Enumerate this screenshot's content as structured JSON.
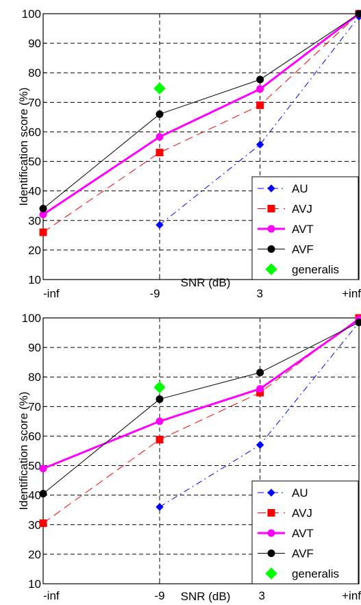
{
  "chart_data": [
    {
      "type": "line",
      "x_categories": [
        "-inf",
        "-9",
        "3",
        "+inf"
      ],
      "xlabel": "SNR (dB)",
      "ylabel": "Identification score (%)",
      "ylim": [
        10,
        100
      ],
      "yticks": [
        10,
        20,
        30,
        40,
        50,
        60,
        70,
        80,
        90,
        100
      ],
      "grid": true,
      "legend_position": "bottom-right",
      "series": [
        {
          "name": "AU",
          "color": "#0000ff",
          "marker": "diamond",
          "line": "dashdot",
          "values": [
            null,
            28.5,
            55.7,
            99
          ]
        },
        {
          "name": "AVJ",
          "color": "#ff0000",
          "marker": "square",
          "line": "dashed",
          "values": [
            26,
            53,
            69,
            100
          ]
        },
        {
          "name": "AVT",
          "color": "#ff00ff",
          "marker": "circle",
          "line": "solid-thick",
          "values": [
            32,
            58.3,
            74.5,
            100
          ]
        },
        {
          "name": "AVF",
          "color": "#000000",
          "marker": "circle",
          "line": "solid",
          "values": [
            34,
            66,
            77.7,
            100
          ]
        },
        {
          "name": "generalis",
          "color": "#00ff00",
          "marker": "diamond-large",
          "line": "none",
          "values": [
            null,
            74.7,
            null,
            null
          ]
        }
      ]
    },
    {
      "type": "line",
      "x_categories": [
        "-inf",
        "-9",
        "3",
        "+inf"
      ],
      "xlabel": "SNR (dB)",
      "ylabel": "Identification score (%)",
      "ylim": [
        10,
        100
      ],
      "yticks": [
        10,
        20,
        30,
        40,
        50,
        60,
        70,
        80,
        90,
        100
      ],
      "grid": true,
      "legend_position": "bottom-right",
      "series": [
        {
          "name": "AU",
          "color": "#0000ff",
          "marker": "diamond",
          "line": "dashdot",
          "values": [
            null,
            36,
            57,
            98.5
          ]
        },
        {
          "name": "AVJ",
          "color": "#ff0000",
          "marker": "square",
          "line": "dashed",
          "values": [
            30.5,
            58.8,
            74.7,
            100
          ]
        },
        {
          "name": "AVT",
          "color": "#ff00ff",
          "marker": "circle",
          "line": "solid-thick",
          "values": [
            49,
            65,
            76,
            99.5
          ]
        },
        {
          "name": "AVF",
          "color": "#000000",
          "marker": "circle",
          "line": "solid",
          "values": [
            40.5,
            72.5,
            81.5,
            98.5
          ]
        },
        {
          "name": "generalis",
          "color": "#00ff00",
          "marker": "diamond-large",
          "line": "none",
          "values": [
            null,
            76.5,
            null,
            null
          ]
        }
      ]
    }
  ]
}
